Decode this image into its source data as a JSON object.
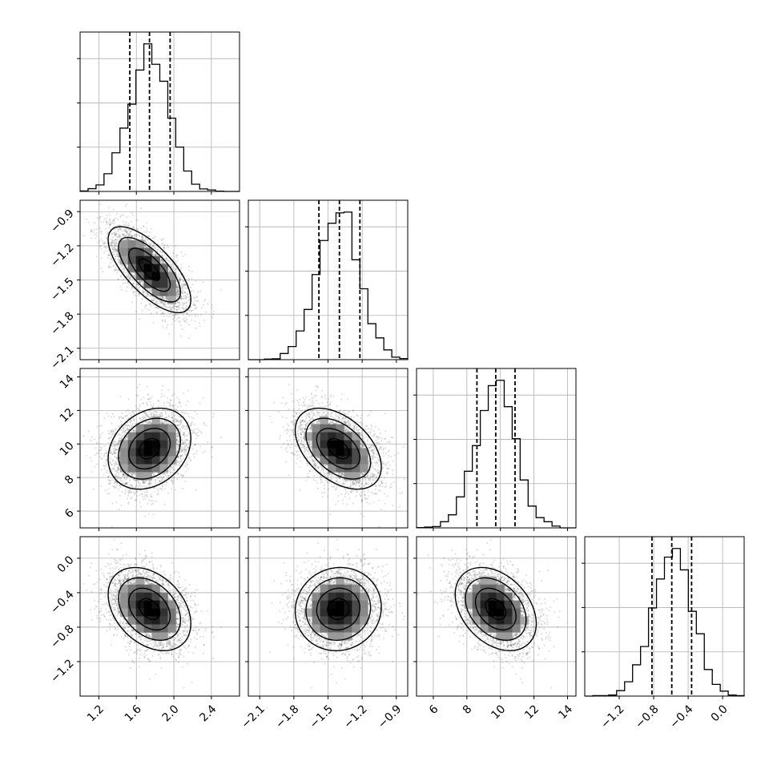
{
  "chart_data": {
    "type": "corner",
    "grid": true,
    "quantiles": [
      0.16,
      0.5,
      0.84
    ],
    "parameters": [
      {
        "range": [
          1.0,
          2.7
        ],
        "mean": 1.74,
        "sd": 0.21,
        "ticks": [
          1.2,
          1.6,
          2.0,
          2.4
        ],
        "tick_labels": [
          "1.2",
          "1.6",
          "2.0",
          "2.4"
        ],
        "quantile_values": [
          1.53,
          1.74,
          1.96
        ]
      },
      {
        "range": [
          -2.2,
          -0.8
        ],
        "mean": -1.41,
        "sd": 0.18,
        "ticks": [
          -2.1,
          -1.8,
          -1.5,
          -1.2,
          -0.9
        ],
        "tick_labels": [
          "−2.1",
          "−1.8",
          "−1.5",
          "−1.2",
          "−0.9"
        ],
        "quantile_values": [
          -1.58,
          -1.4,
          -1.22
        ]
      },
      {
        "range": [
          5.0,
          14.5
        ],
        "mean": 9.72,
        "sd": 1.15,
        "ticks": [
          6,
          8,
          10,
          12,
          14
        ],
        "tick_labels": [
          "6",
          "8",
          "10",
          "12",
          "14"
        ],
        "quantile_values": [
          8.6,
          9.72,
          10.87
        ]
      },
      {
        "range": [
          -1.6,
          0.25
        ],
        "mean": -0.59,
        "sd": 0.23,
        "ticks": [
          -1.2,
          -0.8,
          -0.4,
          0.0
        ],
        "tick_labels": [
          "−1.2",
          "−0.8",
          "−0.4",
          "0.0"
        ],
        "quantile_values": [
          -0.82,
          -0.59,
          -0.36
        ]
      }
    ],
    "correlations": [
      [
        1.0,
        -0.7,
        0.25,
        -0.35
      ],
      [
        -0.7,
        1.0,
        -0.45,
        0.05
      ],
      [
        0.25,
        -0.45,
        1.0,
        -0.35
      ],
      [
        -0.35,
        0.05,
        -0.35,
        1.0
      ]
    ]
  }
}
